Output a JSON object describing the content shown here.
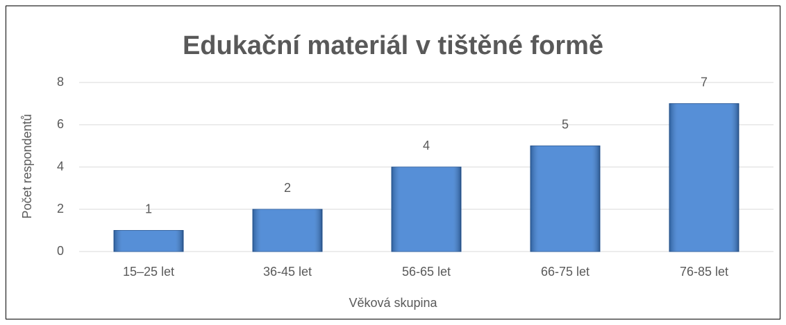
{
  "chart_data": {
    "type": "bar",
    "title": "Edukační materiál v tištěné formě",
    "x_label": "Věková skupina",
    "y_label": "Počet respondentů",
    "categories": [
      "15–25 let",
      "36-45 let",
      "56-65 let",
      "66-75 let",
      "76-85 let"
    ],
    "values": [
      1,
      2,
      4,
      5,
      7
    ],
    "color": "#3f80d2",
    "ylim": [
      0,
      8
    ],
    "yticks": [
      0,
      2,
      4,
      6,
      8
    ],
    "grid": true
  }
}
